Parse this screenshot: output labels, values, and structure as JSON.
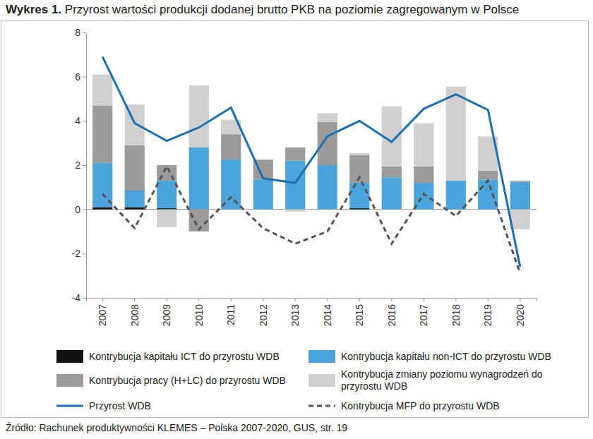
{
  "chart_data": {
    "type": "bar",
    "stacked": true,
    "title": "Wykres 1. Przyrost wartości produkcji dodanej brutto PKB na poziomie zagregowanym w Polsce",
    "source": "Źródło: Rachunek produktywności KLEMES – Polska 2007-2020, GUS, str. 19",
    "categories": [
      "2007",
      "2008",
      "2009",
      "2010",
      "2011",
      "2012",
      "2013",
      "2014",
      "2015",
      "2016",
      "2017",
      "2018",
      "2019",
      "2020"
    ],
    "ylim": [
      -4,
      8
    ],
    "yticks": [
      -4,
      -2,
      0,
      2,
      4,
      6,
      8
    ],
    "grid": false,
    "legend": "bottom",
    "series": [
      {
        "name": "Kontrybucja kapitału ICT do przyrostu WDB",
        "type": "bar",
        "color": "#111111",
        "values": [
          0.1,
          0.1,
          0.05,
          0,
          0,
          0,
          0,
          0,
          0.05,
          0,
          0,
          0,
          0,
          0
        ]
      },
      {
        "name": "Kontrybucja kapitału non-ICT do przyrostu WDB",
        "type": "bar",
        "color": "#4ba4dc",
        "values": [
          2.0,
          0.75,
          1.25,
          2.8,
          2.25,
          1.35,
          2.2,
          2.0,
          1.15,
          1.45,
          1.2,
          1.3,
          1.35,
          1.25
        ]
      },
      {
        "name": "Kontrybucja pracy (H+LC) do przyrostu WDB",
        "type": "bar",
        "color": "#9b9b9b",
        "values": [
          2.6,
          2.05,
          0.7,
          -1.0,
          1.15,
          0.9,
          0.6,
          1.95,
          1.25,
          0.5,
          0.75,
          0,
          0.4,
          0.05
        ]
      },
      {
        "name": "Kontrybucja zmiany poziomu wynagrodzeń do przyrostu WDB",
        "type": "bar",
        "color": "#d0d0d0",
        "values": [
          1.4,
          1.85,
          -0.8,
          2.8,
          0.65,
          0,
          -0.1,
          0.4,
          0.1,
          2.7,
          1.95,
          4.25,
          1.55,
          -0.9
        ]
      },
      {
        "name": "Przyrost WDB",
        "type": "line",
        "color": "#1c6fb0",
        "line_style": "solid",
        "values": [
          6.9,
          3.9,
          3.1,
          3.7,
          4.6,
          1.4,
          1.2,
          3.3,
          4.0,
          3.05,
          4.55,
          5.2,
          4.5,
          -2.6
        ]
      },
      {
        "name": "Kontrybucja MFP do przyrostu WDB",
        "type": "line",
        "color": "#555555",
        "line_style": "dashed",
        "values": [
          0.7,
          -0.85,
          1.95,
          -0.9,
          0.55,
          -0.85,
          -1.55,
          -1.0,
          1.45,
          -1.55,
          0.7,
          -0.3,
          1.3,
          -2.9
        ]
      }
    ]
  }
}
